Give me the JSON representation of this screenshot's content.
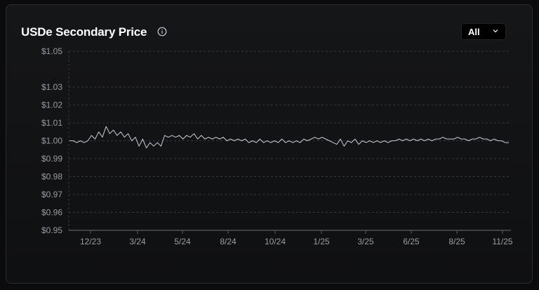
{
  "header": {
    "title": "USDe Secondary Price",
    "info_icon": "info-circle-icon",
    "range_selector": {
      "value": "All",
      "icon": "chevron-down-icon"
    }
  },
  "colors": {
    "line": "#c9ccd6",
    "grid": "#34363b",
    "axis": "#5a5c62",
    "text": "#9a9ca3"
  },
  "chart_data": {
    "type": "line",
    "title": "USDe Secondary Price",
    "xlabel": "",
    "ylabel": "",
    "ylim": [
      0.95,
      1.05
    ],
    "y_ticks": [
      {
        "v": 1.05,
        "label": "$1.05"
      },
      {
        "v": 1.03,
        "label": "$1.03"
      },
      {
        "v": 1.02,
        "label": "$1.02"
      },
      {
        "v": 1.01,
        "label": "$1.01"
      },
      {
        "v": 1.0,
        "label": "$1.00"
      },
      {
        "v": 0.99,
        "label": "$0.99"
      },
      {
        "v": 0.98,
        "label": "$0.98"
      },
      {
        "v": 0.97,
        "label": "$0.97"
      },
      {
        "v": 0.96,
        "label": "$0.96"
      },
      {
        "v": 0.95,
        "label": "$0.95"
      }
    ],
    "x_ticks": [
      "12/23",
      "3/24",
      "5/24",
      "8/24",
      "10/24",
      "1/25",
      "3/25",
      "6/25",
      "8/25",
      "11/25"
    ],
    "grid": true,
    "series": [
      {
        "values": [
          1.0,
          1.0,
          0.999,
          1.0,
          0.999,
          1.0,
          1.003,
          1.001,
          1.005,
          1.002,
          1.008,
          1.004,
          1.006,
          1.003,
          1.005,
          1.002,
          1.004,
          1.0,
          1.002,
          0.997,
          1.001,
          0.996,
          0.999,
          0.997,
          0.999,
          0.997,
          1.003,
          1.002,
          1.003,
          1.002,
          1.003,
          1.001,
          1.003,
          1.002,
          1.004,
          1.001,
          1.003,
          1.001,
          1.002,
          1.001,
          1.002,
          1.001,
          1.002,
          1.0,
          1.001,
          1.0,
          1.001,
          1.0,
          1.001,
          0.999,
          1.0,
          0.999,
          1.001,
          0.999,
          1.0,
          0.999,
          1.0,
          0.999,
          1.001,
          0.999,
          1.0,
          0.999,
          1.0,
          0.999,
          1.001,
          1.0,
          1.001,
          1.002,
          1.001,
          1.002,
          1.001,
          1.0,
          0.999,
          0.998,
          1.001,
          0.997,
          1.0,
          0.999,
          1.001,
          0.998,
          1.0,
          0.999,
          1.0,
          0.999,
          1.0,
          0.999,
          1.0,
          0.999,
          1.0,
          1.0,
          1.001,
          1.0,
          1.001,
          1.0,
          1.001,
          1.0,
          1.001,
          1.0,
          1.001,
          1.0,
          1.001,
          1.001,
          1.002,
          1.001,
          1.001,
          1.001,
          1.002,
          1.001,
          1.001,
          1.0,
          1.001,
          1.001,
          1.002,
          1.001,
          1.001,
          1.0,
          1.001,
          1.0,
          1.0,
          0.999,
          0.999
        ]
      }
    ]
  }
}
